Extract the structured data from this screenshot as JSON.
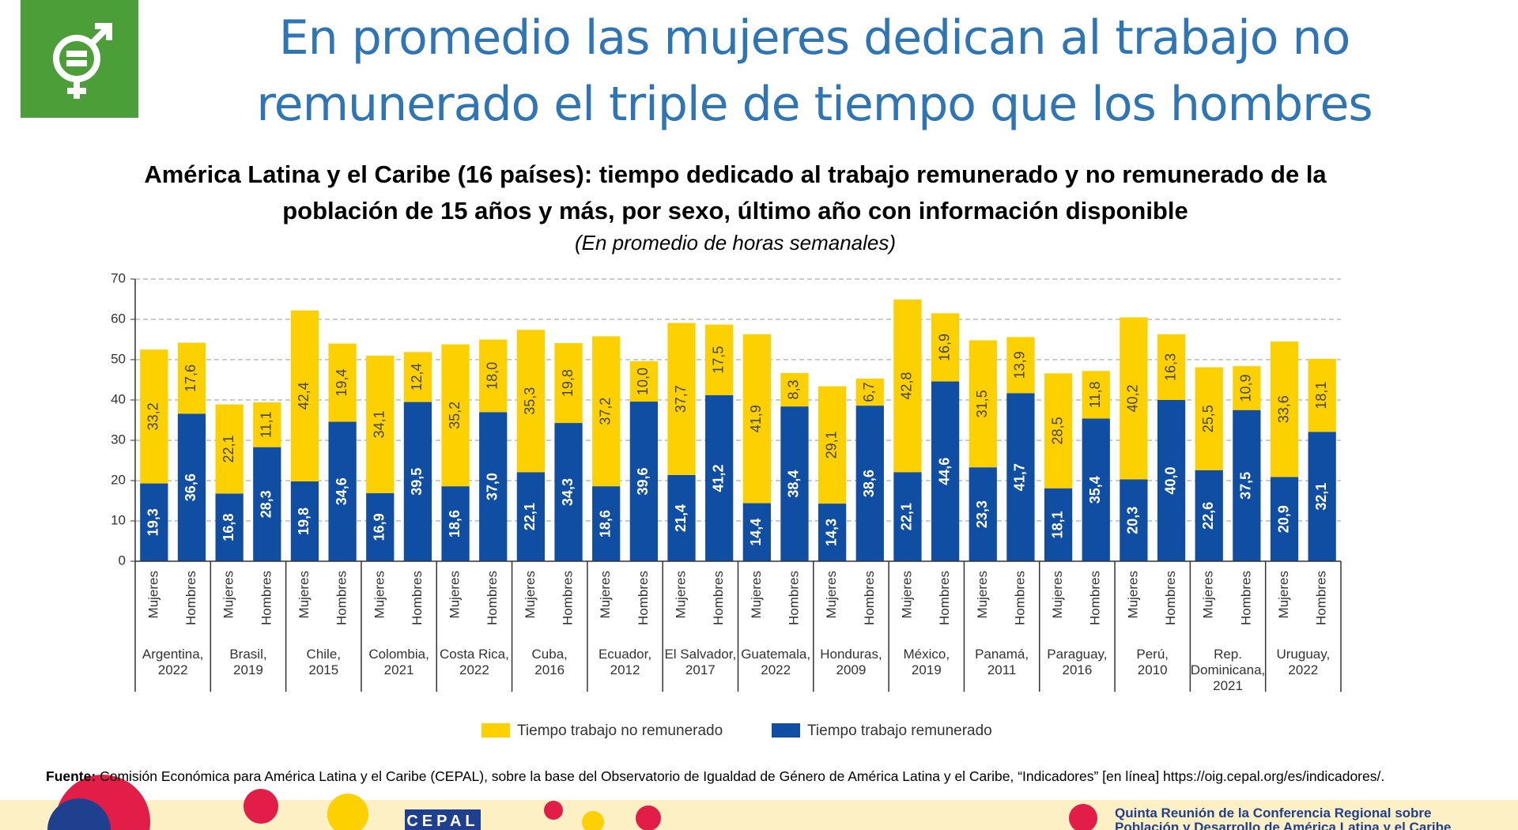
{
  "header": {
    "title": "En promedio las mujeres dedican al trabajo no\nremunerado el triple de tiempo que los hombres"
  },
  "chart_data": {
    "type": "stacked_bar",
    "title": "América Latina y el Caribe (16 países): tiempo dedicado al trabajo remunerado y no remunerado de la población de 15 años y más, por sexo, último año con información disponible",
    "subtitle": "(En promedio de horas semanales)",
    "categories": [
      "Mujeres",
      "Hombres",
      "Mujeres",
      "Hombres",
      "Mujeres",
      "Hombres",
      "Mujeres",
      "Hombres",
      "Mujeres",
      "Hombres",
      "Mujeres",
      "Hombres",
      "Mujeres",
      "Hombres",
      "Mujeres",
      "Hombres",
      "Mujeres",
      "Hombres",
      "Mujeres",
      "Hombres",
      "Mujeres",
      "Hombres",
      "Mujeres",
      "Hombres",
      "Mujeres",
      "Hombres",
      "Mujeres",
      "Hombres",
      "Mujeres",
      "Hombres",
      "Mujeres",
      "Hombres"
    ],
    "groups": [
      "Argentina,\n2022",
      "Brasil,\n2019",
      "Chile,\n2015",
      "Colombia,\n2021",
      "Costa Rica,\n2022",
      "Cuba,\n2016",
      "Ecuador,\n2012",
      "El Salvador,\n2017",
      "Guatemala,\n2022",
      "Honduras,\n2009",
      "México,\n2019",
      "Panamá,\n2011",
      "Paraguay,\n2016",
      "Perú,\n2010",
      "Rep.\nDominicana,\n2021",
      "Uruguay,\n2022"
    ],
    "series": [
      {
        "name": "Tiempo trabajo no remunerado",
        "color": "#fdd000",
        "values": [
          33.2,
          17.6,
          22.1,
          11.1,
          42.4,
          19.4,
          34.1,
          12.4,
          35.2,
          18.0,
          35.3,
          19.8,
          37.2,
          10.0,
          37.7,
          17.5,
          41.9,
          8.3,
          29.1,
          6.7,
          42.8,
          16.9,
          31.5,
          13.9,
          28.5,
          11.8,
          40.2,
          16.3,
          25.5,
          10.9,
          33.6,
          18.1
        ],
        "value_labels": [
          "33,2",
          "17,6",
          "22,1",
          "11,1",
          "42,4",
          "19,4",
          "34,1",
          "12,4",
          "35,2",
          "18,0",
          "35,3",
          "19,8",
          "37,2",
          "10,0",
          "37,7",
          "17,5",
          "41,9",
          "8,3",
          "29,1",
          "6,7",
          "42,8",
          "16,9",
          "31,5",
          "13,9",
          "28,5",
          "11,8",
          "40,2",
          "16,3",
          "25,5",
          "10,9",
          "33,6",
          "18,1"
        ]
      },
      {
        "name": "Tiempo trabajo remunerado",
        "color": "#0f4ea3",
        "values": [
          19.3,
          36.6,
          16.8,
          28.3,
          19.8,
          34.6,
          16.9,
          39.5,
          18.6,
          37.0,
          22.1,
          34.3,
          18.6,
          39.6,
          21.4,
          41.2,
          14.4,
          38.4,
          14.3,
          38.6,
          22.1,
          44.6,
          23.3,
          41.7,
          18.1,
          35.4,
          20.3,
          40.0,
          22.6,
          37.5,
          20.9,
          32.1
        ],
        "value_labels": [
          "19,3",
          "36,6",
          "16,8",
          "28,3",
          "19,8",
          "34,6",
          "16,9",
          "39,5",
          "18,6",
          "37,0",
          "22,1",
          "34,3",
          "18,6",
          "39,6",
          "21,4",
          "41,2",
          "14,4",
          "38,4",
          "14,3",
          "38,6",
          "22,1",
          "44,6",
          "23,3",
          "41,7",
          "18,1",
          "35,4",
          "20,3",
          "40,0",
          "22,6",
          "37,5",
          "20,9",
          "32,1"
        ]
      }
    ],
    "ylim": [
      0,
      70
    ],
    "yticks": [
      0,
      10,
      20,
      30,
      40,
      50,
      60,
      70
    ],
    "grid": true
  },
  "source": {
    "label": "Fuente:",
    "text": "Comisión Económica para América Latina y el Caribe (CEPAL), sobre la base del Observatorio de Igualdad de Género de América Latina y el Caribe, “Indicadores” [en línea] https://oig.cepal.org/es/indicadores/."
  },
  "footer": {
    "logo": "CEPAL",
    "event": "Quinta Reunión de la Conferencia Regional sobre\nPoblación y Desarrollo de América Latina y el Caribe"
  }
}
